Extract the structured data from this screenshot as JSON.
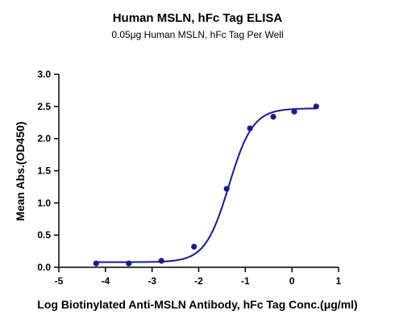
{
  "chart_data": {
    "type": "scatter",
    "title": "Human MSLN, hFc Tag ELISA",
    "subtitle": "0.05μg Human MSLN, hFc Tag Per Well",
    "xlabel": "Log Biotinylated Anti-MSLN Antibody, hFc Tag Conc.(μg/ml)",
    "ylabel": "Mean Abs.(OD450)",
    "xlim": [
      -5,
      1
    ],
    "ylim": [
      0,
      3.0
    ],
    "x_ticks": [
      "-5",
      "-4",
      "-3",
      "-2",
      "-1",
      "0",
      "1"
    ],
    "y_ticks": [
      "0.0",
      "0.5",
      "1.0",
      "1.5",
      "2.0",
      "2.5",
      "3.0"
    ],
    "grid": false,
    "colors": {
      "series": "#1a1a8c"
    },
    "series": [
      {
        "x": [
          -4.2,
          -3.5,
          -2.8,
          -2.1,
          -1.4,
          -0.9,
          -0.4,
          0.05,
          0.52
        ],
        "y": [
          0.06,
          0.06,
          0.1,
          0.32,
          1.22,
          2.16,
          2.34,
          2.42,
          2.5
        ],
        "fit_curve": {
          "model": "4PL",
          "bottom": 0.08,
          "top": 2.47,
          "logEC50": -1.35,
          "hill": 1.7
        }
      }
    ]
  }
}
